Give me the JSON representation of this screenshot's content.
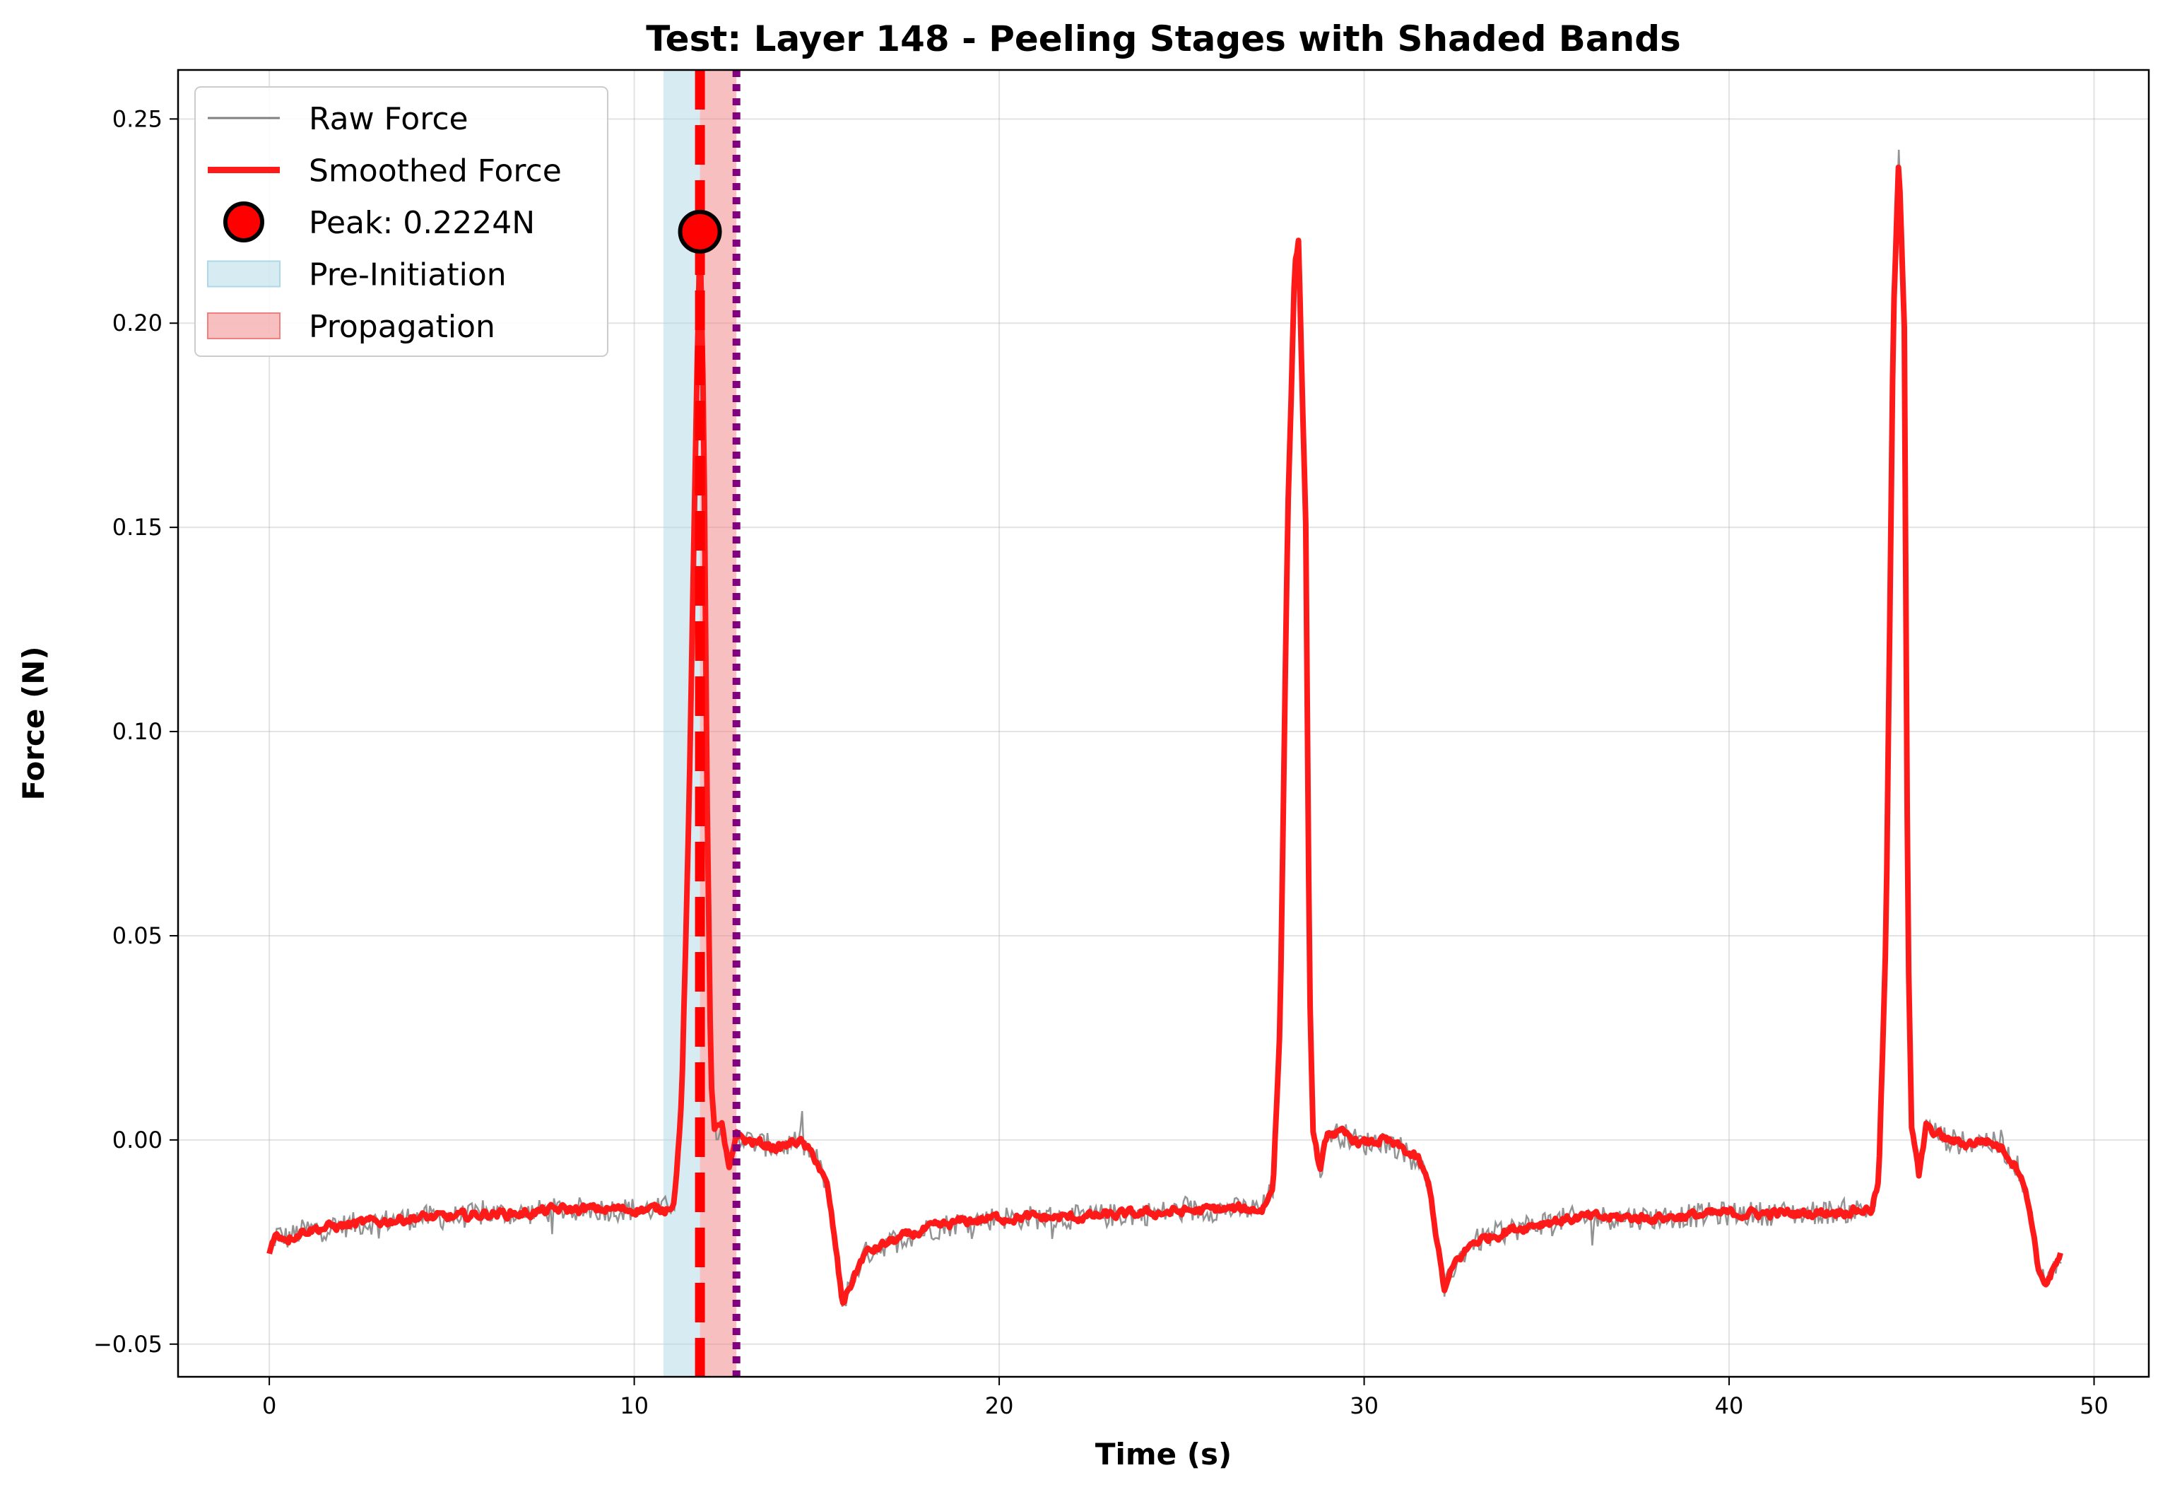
{
  "chart_data": {
    "type": "line",
    "title": "Test: Layer 148 - Peeling Stages with Shaded Bands",
    "xlabel": "Time (s)",
    "ylabel": "Force (N)",
    "xlim": [
      -2.5,
      51.5
    ],
    "ylim": [
      -0.058,
      0.262
    ],
    "xticks": [
      0,
      10,
      20,
      30,
      40,
      50
    ],
    "xtick_labels": [
      "0",
      "10",
      "20",
      "30",
      "40",
      "50"
    ],
    "yticks": [
      -0.05,
      0.0,
      0.05,
      0.1,
      0.15,
      0.2,
      0.25
    ],
    "ytick_labels": [
      "−0.05",
      "0.00",
      "0.05",
      "0.10",
      "0.15",
      "0.20",
      "0.25"
    ],
    "grid": true,
    "legend": {
      "placement": "top-left",
      "entries": [
        {
          "label": "Raw Force",
          "kind": "line",
          "color": "#808080"
        },
        {
          "label": "Smoothed Force",
          "kind": "thick-line",
          "color": "#ff1a1a"
        },
        {
          "label": "Peak: 0.2224N",
          "kind": "marker",
          "color": "#ff0000"
        },
        {
          "label": "Pre-Initiation",
          "kind": "patch",
          "color": "#add8e6"
        },
        {
          "label": "Propagation",
          "kind": "patch",
          "color": "#f08080"
        }
      ]
    },
    "bands": [
      {
        "name": "Pre-Initiation",
        "x_start": 10.8,
        "x_end": 11.8,
        "color": "#add8e6"
      },
      {
        "name": "Propagation",
        "x_start": 11.8,
        "x_end": 12.8,
        "color": "#f08080"
      }
    ],
    "vlines": [
      {
        "name": "initiation",
        "x": 11.8,
        "style": "dashed",
        "color": "#ff0000"
      },
      {
        "name": "end-propagation",
        "x": 12.8,
        "style": "dotted",
        "color": "#800080"
      }
    ],
    "peak": {
      "x": 11.8,
      "y": 0.2224,
      "label": "Peak: 0.2224N"
    },
    "series": [
      {
        "name": "Smoothed Force",
        "color": "#ff1a1a",
        "points": [
          [
            0.0,
            -0.027
          ],
          [
            0.2,
            -0.023
          ],
          [
            0.5,
            -0.024
          ],
          [
            1,
            -0.022
          ],
          [
            2,
            -0.021
          ],
          [
            3,
            -0.02
          ],
          [
            4,
            -0.019
          ],
          [
            5,
            -0.019
          ],
          [
            6,
            -0.018
          ],
          [
            7,
            -0.018
          ],
          [
            8,
            -0.017
          ],
          [
            9,
            -0.017
          ],
          [
            10,
            -0.017
          ],
          [
            10.8,
            -0.017
          ],
          [
            11.1,
            -0.015
          ],
          [
            11.3,
            0.01
          ],
          [
            11.5,
            0.08
          ],
          [
            11.7,
            0.18
          ],
          [
            11.8,
            0.222
          ],
          [
            11.9,
            0.18
          ],
          [
            12.0,
            0.08
          ],
          [
            12.1,
            0.015
          ],
          [
            12.2,
            0.003
          ],
          [
            12.4,
            0.003
          ],
          [
            12.6,
            -0.008
          ],
          [
            12.8,
            0.002
          ],
          [
            13.0,
            0.0
          ],
          [
            13.5,
            -0.001
          ],
          [
            14.0,
            -0.002
          ],
          [
            14.5,
            0.0
          ],
          [
            15.0,
            -0.005
          ],
          [
            15.3,
            -0.012
          ],
          [
            15.5,
            -0.025
          ],
          [
            15.7,
            -0.04
          ],
          [
            15.9,
            -0.036
          ],
          [
            16.3,
            -0.028
          ],
          [
            17,
            -0.025
          ],
          [
            18,
            -0.022
          ],
          [
            19,
            -0.02
          ],
          [
            20,
            -0.019
          ],
          [
            22,
            -0.019
          ],
          [
            24,
            -0.018
          ],
          [
            26,
            -0.017
          ],
          [
            27.2,
            -0.017
          ],
          [
            27.5,
            -0.012
          ],
          [
            27.7,
            0.03
          ],
          [
            27.9,
            0.15
          ],
          [
            28.1,
            0.215
          ],
          [
            28.2,
            0.22
          ],
          [
            28.4,
            0.15
          ],
          [
            28.5,
            0.04
          ],
          [
            28.6,
            0.002
          ],
          [
            28.8,
            -0.008
          ],
          [
            29.0,
            0.002
          ],
          [
            29.5,
            0.001
          ],
          [
            30,
            -0.001
          ],
          [
            30.5,
            0.0
          ],
          [
            31,
            -0.002
          ],
          [
            31.5,
            -0.005
          ],
          [
            31.8,
            -0.012
          ],
          [
            32.0,
            -0.025
          ],
          [
            32.2,
            -0.037
          ],
          [
            32.5,
            -0.03
          ],
          [
            33,
            -0.025
          ],
          [
            34,
            -0.022
          ],
          [
            35,
            -0.02
          ],
          [
            36,
            -0.019
          ],
          [
            38,
            -0.019
          ],
          [
            40,
            -0.018
          ],
          [
            42,
            -0.018
          ],
          [
            43.9,
            -0.017
          ],
          [
            44.1,
            -0.01
          ],
          [
            44.3,
            0.05
          ],
          [
            44.5,
            0.2
          ],
          [
            44.65,
            0.242
          ],
          [
            44.8,
            0.2
          ],
          [
            44.9,
            0.05
          ],
          [
            45.0,
            0.003
          ],
          [
            45.2,
            -0.009
          ],
          [
            45.4,
            0.003
          ],
          [
            46,
            0.0
          ],
          [
            46.5,
            -0.001
          ],
          [
            47,
            0.0
          ],
          [
            47.5,
            -0.002
          ],
          [
            48.0,
            -0.008
          ],
          [
            48.3,
            -0.02
          ],
          [
            48.5,
            -0.033
          ],
          [
            48.7,
            -0.035
          ],
          [
            49.0,
            -0.03
          ],
          [
            49.1,
            -0.028
          ]
        ]
      },
      {
        "name": "Raw Force",
        "color": "#808080",
        "noise_amplitude": 0.003
      }
    ]
  }
}
